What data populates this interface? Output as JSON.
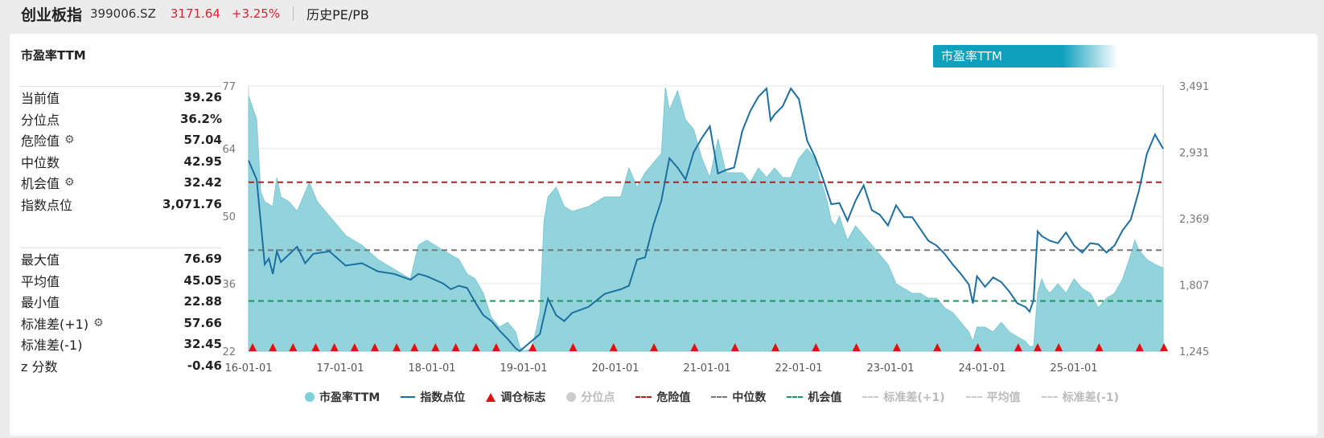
{
  "header": {
    "name": "创业板指",
    "code": "399006.SZ",
    "price": "3171.64",
    "change": "+3.25%",
    "mode": "历史PE/PB"
  },
  "panel": {
    "title": "市盈率TTM",
    "tab_label": "市盈率TTM"
  },
  "stats_top": [
    {
      "label": "当前值",
      "value": "39.26",
      "gear": false
    },
    {
      "label": "分位点",
      "value": "36.2%",
      "gear": false
    },
    {
      "label": "危险值",
      "value": "57.04",
      "gear": true
    },
    {
      "label": "中位数",
      "value": "42.95",
      "gear": false
    },
    {
      "label": "机会值",
      "value": "32.42",
      "gear": true
    },
    {
      "label": "指数点位",
      "value": "3,071.76",
      "gear": false
    }
  ],
  "stats_bottom": [
    {
      "label": "最大值",
      "value": "76.69",
      "gear": false
    },
    {
      "label": "平均值",
      "value": "45.05",
      "gear": false
    },
    {
      "label": "最小值",
      "value": "22.88",
      "gear": false
    },
    {
      "label": "标准差(+1)",
      "value": "57.66",
      "gear": true
    },
    {
      "label": "标准差(-1)",
      "value": "32.45",
      "gear": false
    },
    {
      "label": "z 分数",
      "value": "-0.46",
      "gear": false
    }
  ],
  "legend": [
    {
      "label": "市盈率TTM",
      "kind": "dot",
      "color": "#7ecfd9",
      "active": true
    },
    {
      "label": "指数点位",
      "kind": "line",
      "color": "#1d6fa0",
      "active": true
    },
    {
      "label": "调仓标志",
      "kind": "tri",
      "color": "#e01010",
      "active": true
    },
    {
      "label": "分位点",
      "kind": "dot",
      "color": "#cccccc",
      "active": false
    },
    {
      "label": "危险值",
      "kind": "dash",
      "color": "#b02020",
      "active": true
    },
    {
      "label": "中位数",
      "kind": "dash",
      "color": "#777777",
      "active": true
    },
    {
      "label": "机会值",
      "kind": "dash",
      "color": "#1a9a5a",
      "active": true
    },
    {
      "label": "标准差(+1)",
      "kind": "dash",
      "color": "#cccccc",
      "active": false
    },
    {
      "label": "平均值",
      "kind": "dash",
      "color": "#cccccc",
      "active": false
    },
    {
      "label": "标准差(-1)",
      "kind": "dash",
      "color": "#cccccc",
      "active": false
    }
  ],
  "chart_data": {
    "type": "area",
    "x_start": "16-01-01",
    "x_end": "25-12-31",
    "x_ticks": [
      "16-01-01",
      "17-01-01",
      "18-01-01",
      "19-01-01",
      "20-01-01",
      "21-01-01",
      "22-01-01",
      "23-01-01",
      "24-01-01",
      "25-01-01"
    ],
    "y_left_ticks": [
      77,
      64,
      50,
      36,
      22
    ],
    "y_left_range": [
      22,
      77
    ],
    "y_right_ticks": [
      "3,491",
      "2,931",
      "2,369",
      "1,807",
      "1,245"
    ],
    "y_right_range": [
      1245,
      3491
    ],
    "colors": {
      "pe_fill": "#93d3dc",
      "pe_line": "#7ecad6",
      "index": "#1d6fa0",
      "danger": "#b02020",
      "median": "#777777",
      "opportunity": "#1a9a5a",
      "marker": "#e01010"
    },
    "reference_lines": {
      "danger": 57.04,
      "median": 42.95,
      "opportunity": 32.42
    },
    "pe_series": {
      "name": "市盈率TTM",
      "points": [
        [
          0.0,
          75
        ],
        [
          0.01,
          70
        ],
        [
          0.015,
          55
        ],
        [
          0.02,
          53
        ],
        [
          0.03,
          52
        ],
        [
          0.035,
          58
        ],
        [
          0.04,
          54
        ],
        [
          0.05,
          53
        ],
        [
          0.06,
          51
        ],
        [
          0.075,
          57
        ],
        [
          0.085,
          53
        ],
        [
          0.1,
          50
        ],
        [
          0.12,
          46
        ],
        [
          0.14,
          44
        ],
        [
          0.16,
          41
        ],
        [
          0.18,
          39
        ],
        [
          0.2,
          37
        ],
        [
          0.21,
          44
        ],
        [
          0.22,
          45
        ],
        [
          0.24,
          43
        ],
        [
          0.26,
          41
        ],
        [
          0.27,
          38
        ],
        [
          0.28,
          37
        ],
        [
          0.29,
          34
        ],
        [
          0.3,
          29
        ],
        [
          0.31,
          27
        ],
        [
          0.32,
          28
        ],
        [
          0.33,
          26
        ],
        [
          0.335,
          22.88
        ],
        [
          0.34,
          22
        ],
        [
          0.35,
          22.5
        ],
        [
          0.36,
          30
        ],
        [
          0.365,
          49
        ],
        [
          0.37,
          54
        ],
        [
          0.38,
          56
        ],
        [
          0.39,
          52
        ],
        [
          0.4,
          51
        ],
        [
          0.42,
          52
        ],
        [
          0.44,
          54
        ],
        [
          0.46,
          54
        ],
        [
          0.47,
          60
        ],
        [
          0.48,
          56
        ],
        [
          0.49,
          59
        ],
        [
          0.5,
          61
        ],
        [
          0.51,
          63
        ],
        [
          0.515,
          76.69
        ],
        [
          0.52,
          72
        ],
        [
          0.53,
          76
        ],
        [
          0.54,
          70
        ],
        [
          0.55,
          68
        ],
        [
          0.56,
          62
        ],
        [
          0.57,
          58
        ],
        [
          0.58,
          66
        ],
        [
          0.59,
          59
        ],
        [
          0.6,
          59
        ],
        [
          0.61,
          59
        ],
        [
          0.62,
          57
        ],
        [
          0.63,
          60
        ],
        [
          0.64,
          58
        ],
        [
          0.65,
          60
        ],
        [
          0.66,
          58
        ],
        [
          0.67,
          58
        ],
        [
          0.68,
          62
        ],
        [
          0.69,
          64
        ],
        [
          0.7,
          62
        ],
        [
          0.705,
          58
        ],
        [
          0.71,
          56
        ],
        [
          0.715,
          53
        ],
        [
          0.72,
          49
        ],
        [
          0.725,
          48
        ],
        [
          0.73,
          50
        ],
        [
          0.74,
          45
        ],
        [
          0.75,
          48
        ],
        [
          0.76,
          46
        ],
        [
          0.77,
          44
        ],
        [
          0.78,
          42
        ],
        [
          0.79,
          40
        ],
        [
          0.8,
          36
        ],
        [
          0.81,
          35
        ],
        [
          0.82,
          34
        ],
        [
          0.83,
          34
        ],
        [
          0.84,
          33
        ],
        [
          0.85,
          33
        ],
        [
          0.86,
          31
        ],
        [
          0.87,
          30
        ],
        [
          0.88,
          28
        ],
        [
          0.89,
          26
        ],
        [
          0.895,
          24
        ],
        [
          0.9,
          27
        ],
        [
          0.91,
          27
        ],
        [
          0.92,
          26
        ],
        [
          0.93,
          28
        ],
        [
          0.94,
          26
        ],
        [
          0.95,
          25
        ],
        [
          0.96,
          24
        ],
        [
          0.965,
          23
        ],
        [
          0.97,
          23
        ],
        [
          0.975,
          34
        ],
        [
          0.98,
          37
        ],
        [
          0.985,
          35
        ],
        [
          0.99,
          34
        ],
        [
          1.0,
          36
        ],
        [
          1.01,
          34
        ],
        [
          1.02,
          37
        ],
        [
          1.03,
          35
        ],
        [
          1.04,
          34
        ],
        [
          1.05,
          31
        ],
        [
          1.06,
          33
        ],
        [
          1.07,
          34
        ],
        [
          1.08,
          37
        ],
        [
          1.09,
          42
        ],
        [
          1.095,
          45
        ],
        [
          1.1,
          43
        ],
        [
          1.11,
          41
        ],
        [
          1.12,
          40
        ],
        [
          1.13,
          39.26
        ]
      ]
    },
    "index_series": {
      "name": "指数点位",
      "points": [
        [
          0.0,
          2860
        ],
        [
          0.01,
          2700
        ],
        [
          0.02,
          1980
        ],
        [
          0.025,
          2030
        ],
        [
          0.03,
          1900
        ],
        [
          0.035,
          2090
        ],
        [
          0.04,
          2000
        ],
        [
          0.06,
          2130
        ],
        [
          0.07,
          1990
        ],
        [
          0.08,
          2070
        ],
        [
          0.1,
          2090
        ],
        [
          0.12,
          1970
        ],
        [
          0.14,
          1990
        ],
        [
          0.16,
          1920
        ],
        [
          0.18,
          1900
        ],
        [
          0.2,
          1850
        ],
        [
          0.21,
          1900
        ],
        [
          0.22,
          1880
        ],
        [
          0.24,
          1820
        ],
        [
          0.25,
          1770
        ],
        [
          0.26,
          1800
        ],
        [
          0.27,
          1780
        ],
        [
          0.28,
          1660
        ],
        [
          0.29,
          1550
        ],
        [
          0.3,
          1500
        ],
        [
          0.31,
          1420
        ],
        [
          0.32,
          1350
        ],
        [
          0.33,
          1270
        ],
        [
          0.335,
          1245
        ],
        [
          0.36,
          1390
        ],
        [
          0.37,
          1690
        ],
        [
          0.38,
          1550
        ],
        [
          0.39,
          1500
        ],
        [
          0.4,
          1570
        ],
        [
          0.42,
          1620
        ],
        [
          0.44,
          1730
        ],
        [
          0.46,
          1770
        ],
        [
          0.47,
          1800
        ],
        [
          0.48,
          2020
        ],
        [
          0.49,
          2040
        ],
        [
          0.5,
          2310
        ],
        [
          0.51,
          2520
        ],
        [
          0.515,
          2700
        ],
        [
          0.52,
          2880
        ],
        [
          0.53,
          2800
        ],
        [
          0.54,
          2700
        ],
        [
          0.55,
          2930
        ],
        [
          0.56,
          3050
        ],
        [
          0.57,
          3150
        ],
        [
          0.58,
          2750
        ],
        [
          0.59,
          2780
        ],
        [
          0.6,
          2800
        ],
        [
          0.61,
          3110
        ],
        [
          0.62,
          3280
        ],
        [
          0.63,
          3400
        ],
        [
          0.64,
          3470
        ],
        [
          0.645,
          3200
        ],
        [
          0.65,
          3250
        ],
        [
          0.66,
          3320
        ],
        [
          0.67,
          3470
        ],
        [
          0.68,
          3380
        ],
        [
          0.69,
          3030
        ],
        [
          0.7,
          2890
        ],
        [
          0.71,
          2700
        ],
        [
          0.72,
          2490
        ],
        [
          0.73,
          2500
        ],
        [
          0.74,
          2350
        ],
        [
          0.75,
          2520
        ],
        [
          0.76,
          2650
        ],
        [
          0.77,
          2440
        ],
        [
          0.78,
          2400
        ],
        [
          0.79,
          2310
        ],
        [
          0.8,
          2480
        ],
        [
          0.81,
          2380
        ],
        [
          0.82,
          2380
        ],
        [
          0.83,
          2280
        ],
        [
          0.84,
          2180
        ],
        [
          0.85,
          2140
        ],
        [
          0.86,
          2070
        ],
        [
          0.87,
          1980
        ],
        [
          0.88,
          1900
        ],
        [
          0.89,
          1810
        ],
        [
          0.895,
          1650
        ],
        [
          0.9,
          1880
        ],
        [
          0.91,
          1790
        ],
        [
          0.92,
          1870
        ],
        [
          0.93,
          1830
        ],
        [
          0.94,
          1750
        ],
        [
          0.95,
          1650
        ],
        [
          0.96,
          1620
        ],
        [
          0.965,
          1580
        ],
        [
          0.97,
          1680
        ],
        [
          0.975,
          2260
        ],
        [
          0.98,
          2220
        ],
        [
          0.99,
          2180
        ],
        [
          1.0,
          2160
        ],
        [
          1.01,
          2250
        ],
        [
          1.02,
          2140
        ],
        [
          1.03,
          2080
        ],
        [
          1.04,
          2160
        ],
        [
          1.05,
          2150
        ],
        [
          1.06,
          2080
        ],
        [
          1.07,
          2140
        ],
        [
          1.08,
          2270
        ],
        [
          1.09,
          2360
        ],
        [
          1.1,
          2600
        ],
        [
          1.11,
          2920
        ],
        [
          1.12,
          3080
        ],
        [
          1.13,
          2960
        ]
      ]
    },
    "rebalance_markers": [
      0.005,
      0.03,
      0.055,
      0.083,
      0.106,
      0.131,
      0.156,
      0.183,
      0.205,
      0.231,
      0.256,
      0.281,
      0.306,
      0.351,
      0.401,
      0.451,
      0.501,
      0.551,
      0.601,
      0.651,
      0.701,
      0.751,
      0.801,
      0.851,
      0.901,
      0.951,
      0.975,
      1.001,
      1.051,
      1.101,
      1.131
    ]
  }
}
